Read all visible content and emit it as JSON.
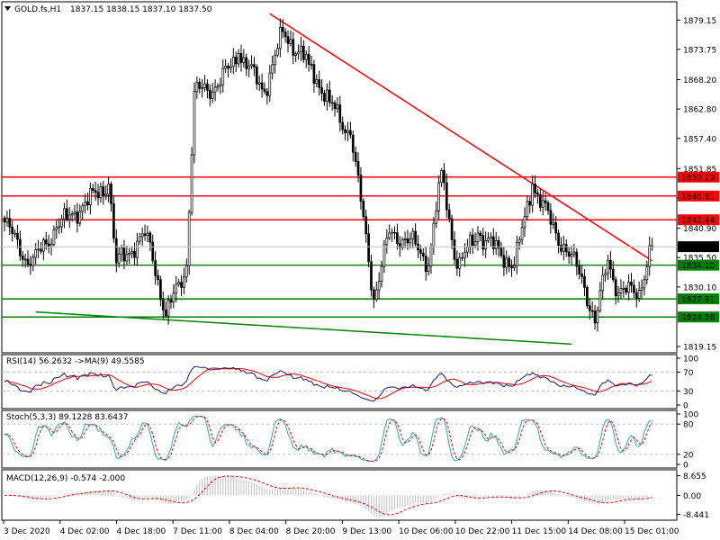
{
  "header": {
    "symbol": "GOLD.fs,H1",
    "ohlc": "1837.15 1838.15 1837.10 1837.50"
  },
  "indicators": {
    "rsi_label": "RSI(14) 56.2632  ->MA(9) 49.5585",
    "stoch_label": "Stoch(5,3,3) 89.1228 83.6437",
    "macd_label": "MACD(12,26,9) -0.574 -2.000"
  },
  "colors": {
    "background": "#ffffff",
    "axis": "#000000",
    "candle_up": "#ffffff",
    "candle_down": "#000000",
    "resistance": "#ff0000",
    "support": "#008000",
    "trendline_down": "#ff0000",
    "trendline_support": "#008000",
    "current_price_bg": "#000000",
    "current_price_fg": "#ffffff",
    "rsi_line": "#191970",
    "rsi_ma": "#ff0000",
    "stoch_main": "#20b2aa",
    "stoch_signal": "#ff0000",
    "macd_hist": "#c0c0c0",
    "macd_signal": "#ff0000",
    "grid_dashed": "#c0c0c0"
  },
  "chart_data": {
    "type": "candlestick",
    "instrument": "GOLD.fs",
    "timeframe": "H1",
    "price_axis": {
      "ticks": [
        "1879.15",
        "1873.75",
        "1868.20",
        "1862.80",
        "1857.40",
        "1851.85",
        "1846.45",
        "1840.90",
        "1835.50",
        "1830.10",
        "1819.15"
      ],
      "ylim": [
        1818.0,
        1882.5
      ]
    },
    "time_axis": {
      "ticks": [
        "3 Dec 2020",
        "4 Dec 02:00",
        "4 Dec 18:00",
        "7 Dec 11:00",
        "8 Dec 04:00",
        "8 Dec 20:00",
        "9 Dec 13:00",
        "10 Dec 06:00",
        "10 Dec 22:00",
        "11 Dec 15:00",
        "14 Dec 08:00",
        "15 Dec 01:00"
      ]
    },
    "current_price": "1837.50",
    "horizontal_levels": [
      {
        "price": 1850.29,
        "label": "1850.29",
        "kind": "resistance"
      },
      {
        "price": 1846.81,
        "label": "1846.81",
        "kind": "resistance"
      },
      {
        "price": 1842.44,
        "label": "1842.44",
        "kind": "resistance"
      },
      {
        "price": 1834.1,
        "label": "1834.10",
        "kind": "support"
      },
      {
        "price": 1827.91,
        "label": "1827.91",
        "kind": "support"
      },
      {
        "price": 1824.58,
        "label": "1824.58",
        "kind": "support"
      }
    ],
    "trendlines": [
      {
        "kind": "descending_resistance",
        "start": {
          "bar": 102,
          "price": 1880.3
        },
        "end": {
          "bar": 249,
          "price": 1834.9
        }
      },
      {
        "kind": "descending_support",
        "start": {
          "bar": 12,
          "price": 1825.5
        },
        "end": {
          "bar": 218,
          "price": 1819.6
        }
      }
    ],
    "key_points": [
      {
        "bar": 0,
        "price": 1842.0
      },
      {
        "bar": 10,
        "price": 1834.0
      },
      {
        "bar": 20,
        "price": 1841.0
      },
      {
        "bar": 30,
        "price": 1845.0
      },
      {
        "bar": 40,
        "price": 1849.0
      },
      {
        "bar": 43,
        "price": 1834.5
      },
      {
        "bar": 55,
        "price": 1840.0
      },
      {
        "bar": 62,
        "price": 1824.8
      },
      {
        "bar": 70,
        "price": 1834.0
      },
      {
        "bar": 73,
        "price": 1866.0
      },
      {
        "bar": 82,
        "price": 1867.0
      },
      {
        "bar": 90,
        "price": 1873.0
      },
      {
        "bar": 100,
        "price": 1866.0
      },
      {
        "bar": 107,
        "price": 1877.0
      },
      {
        "bar": 117,
        "price": 1871.0
      },
      {
        "bar": 125,
        "price": 1864.0
      },
      {
        "bar": 133,
        "price": 1858.0
      },
      {
        "bar": 138,
        "price": 1843.0
      },
      {
        "bar": 142,
        "price": 1827.8
      },
      {
        "bar": 148,
        "price": 1840.0
      },
      {
        "bar": 158,
        "price": 1838.0
      },
      {
        "bar": 163,
        "price": 1834.0
      },
      {
        "bar": 168,
        "price": 1851.5
      },
      {
        "bar": 174,
        "price": 1833.5
      },
      {
        "bar": 182,
        "price": 1840.0
      },
      {
        "bar": 196,
        "price": 1834.0
      },
      {
        "bar": 203,
        "price": 1849.0
      },
      {
        "bar": 212,
        "price": 1840.0
      },
      {
        "bar": 222,
        "price": 1832.0
      },
      {
        "bar": 227,
        "price": 1823.5
      },
      {
        "bar": 232,
        "price": 1835.0
      },
      {
        "bar": 236,
        "price": 1829.0
      },
      {
        "bar": 244,
        "price": 1829.5
      },
      {
        "bar": 249,
        "price": 1837.5
      }
    ],
    "rsi": {
      "label": "RSI(14) 56.2632  ->MA(9) 49.5585",
      "ticks": [
        "100",
        "70",
        "30",
        "0"
      ],
      "ylim": [
        0,
        100
      ],
      "levels": [
        70,
        30
      ]
    },
    "stochastic": {
      "label": "Stoch(5,3,3) 89.1228 83.6437",
      "ticks": [
        "100",
        "80",
        "20",
        "0"
      ],
      "ylim": [
        0,
        100
      ],
      "levels": [
        80,
        20
      ]
    },
    "macd": {
      "label": "MACD(12,26,9) -0.574 -2.000",
      "ticks": [
        "8.655",
        "0.00",
        "-8.441"
      ],
      "ylim": [
        -10.2,
        10.5
      ]
    }
  }
}
